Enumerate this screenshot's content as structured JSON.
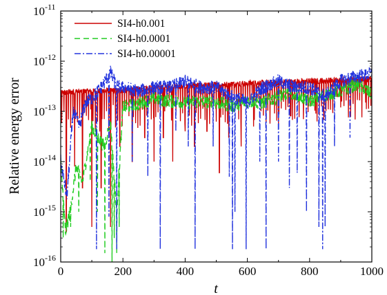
{
  "chart_data": {
    "type": "line",
    "title": "",
    "xlabel": "t",
    "ylabel": "Relative energy error",
    "xlim": [
      0,
      1000
    ],
    "ylim": [
      1e-16,
      1e-11
    ],
    "yscale": "log",
    "xticks": [
      0,
      200,
      400,
      600,
      800,
      1000
    ],
    "xtick_labels": [
      "0",
      "200",
      "400",
      "600",
      "800",
      "1000"
    ],
    "ytick_mantissa": "10",
    "ytick_exponents": [
      "-16",
      "-15",
      "-14",
      "-13",
      "-12",
      "-11"
    ],
    "grid": false,
    "legend_position": "top-left",
    "series": [
      {
        "name": "SI4-h0.001",
        "color": "#cc0000",
        "style": "solid",
        "x": [
          0,
          20,
          50,
          100,
          150,
          200,
          250,
          300,
          400,
          500,
          600,
          700,
          800,
          900,
          1000
        ],
        "y": [
          2.3e-13,
          2.4e-13,
          2.5e-13,
          2.5e-13,
          2.6e-13,
          2.6e-13,
          2.8e-13,
          3e-13,
          3.2e-13,
          3.4e-13,
          3.6e-13,
          3.8e-13,
          4e-13,
          4.2e-13,
          4.4e-13
        ],
        "dips": [
          {
            "x": 18,
            "y": 4e-16
          },
          {
            "x": 45,
            "y": 8e-15
          },
          {
            "x": 70,
            "y": 3e-15
          },
          {
            "x": 100,
            "y": 5e-16
          },
          {
            "x": 130,
            "y": 3e-15
          },
          {
            "x": 160,
            "y": 5e-16
          },
          {
            "x": 190,
            "y": 2e-14
          },
          {
            "x": 230,
            "y": 1e-14
          },
          {
            "x": 270,
            "y": 3e-14
          },
          {
            "x": 300,
            "y": 1e-14
          },
          {
            "x": 330,
            "y": 3e-14
          },
          {
            "x": 360,
            "y": 1e-14
          },
          {
            "x": 400,
            "y": 4e-14
          },
          {
            "x": 430,
            "y": 2e-14
          },
          {
            "x": 470,
            "y": 4e-14
          },
          {
            "x": 510,
            "y": 6e-15
          },
          {
            "x": 540,
            "y": 3e-14
          },
          {
            "x": 580,
            "y": 2e-14
          },
          {
            "x": 620,
            "y": 5e-14
          },
          {
            "x": 660,
            "y": 6e-14
          },
          {
            "x": 700,
            "y": 5e-14
          },
          {
            "x": 740,
            "y": 8e-14
          },
          {
            "x": 780,
            "y": 7e-14
          },
          {
            "x": 820,
            "y": 9e-14
          },
          {
            "x": 860,
            "y": 1.1e-13
          },
          {
            "x": 900,
            "y": 1.2e-13
          },
          {
            "x": 940,
            "y": 1.4e-13
          },
          {
            "x": 980,
            "y": 1.5e-13
          }
        ]
      },
      {
        "name": "SI4-h0.0001",
        "color": "#22cc22",
        "style": "dashed",
        "x": [
          0,
          15,
          30,
          50,
          70,
          100,
          120,
          140,
          160,
          180,
          200,
          250,
          300,
          350,
          400,
          450,
          500,
          550,
          600,
          650,
          700,
          750,
          800,
          850,
          900,
          950,
          1000
        ],
        "y": [
          1e-14,
          4e-16,
          1e-15,
          8e-15,
          4e-15,
          5e-14,
          3e-14,
          2e-14,
          6e-14,
          1e-15,
          1.2e-13,
          1.4e-13,
          1.8e-13,
          1.6e-13,
          1.5e-13,
          1.6e-13,
          1.5e-13,
          1.3e-13,
          1.6e-13,
          1.5e-13,
          2e-13,
          2.2e-13,
          1.6e-13,
          2.1e-13,
          2.5e-13,
          3.5e-13,
          2.2e-13
        ],
        "dips": [
          {
            "x": 8,
            "y": 3e-16
          },
          {
            "x": 32,
            "y": 5e-16
          },
          {
            "x": 58,
            "y": 1e-15
          },
          {
            "x": 95,
            "y": 4e-15
          },
          {
            "x": 118,
            "y": 1e-15
          },
          {
            "x": 142,
            "y": 1.5e-16
          },
          {
            "x": 165,
            "y": 1e-16
          },
          {
            "x": 172,
            "y": 3e-16
          },
          {
            "x": 180,
            "y": 1.5e-16
          },
          {
            "x": 188,
            "y": 5e-16
          }
        ]
      },
      {
        "name": "SI4-h0.00001",
        "color": "#2233dd",
        "style": "dashdot",
        "x": [
          0,
          20,
          40,
          60,
          80,
          100,
          130,
          160,
          180,
          200,
          250,
          300,
          350,
          400,
          450,
          500,
          550,
          600,
          650,
          700,
          750,
          800,
          850,
          900,
          950,
          1000
        ],
        "y": [
          1e-14,
          2e-15,
          1e-13,
          5e-14,
          1.5e-13,
          1.8e-13,
          3e-13,
          6e-13,
          3e-13,
          3e-13,
          2.5e-13,
          3e-13,
          3e-13,
          4e-13,
          3e-13,
          3e-13,
          2e-13,
          1.5e-13,
          3e-13,
          4e-13,
          3e-13,
          3e-13,
          2e-13,
          4e-13,
          5e-13,
          5.5e-13
        ],
        "dips": [
          {
            "x": 115,
            "y": 1.8e-16
          },
          {
            "x": 155,
            "y": 8e-16
          },
          {
            "x": 180,
            "y": 1.8e-16
          },
          {
            "x": 230,
            "y": 1e-14
          },
          {
            "x": 280,
            "y": 5e-15
          },
          {
            "x": 320,
            "y": 1.8e-16
          },
          {
            "x": 370,
            "y": 4e-14
          },
          {
            "x": 410,
            "y": 2e-14
          },
          {
            "x": 432,
            "y": 1.8e-16
          },
          {
            "x": 490,
            "y": 2e-14
          },
          {
            "x": 542,
            "y": 5e-15
          },
          {
            "x": 552,
            "y": 1.8e-16
          },
          {
            "x": 560,
            "y": 1e-15
          },
          {
            "x": 596,
            "y": 1.8e-16
          },
          {
            "x": 640,
            "y": 1e-14
          },
          {
            "x": 660,
            "y": 1.8e-16
          },
          {
            "x": 700,
            "y": 1e-14
          },
          {
            "x": 735,
            "y": 3e-15
          },
          {
            "x": 760,
            "y": 6e-15
          },
          {
            "x": 790,
            "y": 1e-15
          },
          {
            "x": 830,
            "y": 5e-16
          },
          {
            "x": 842,
            "y": 1.8e-16
          },
          {
            "x": 850,
            "y": 5e-16
          },
          {
            "x": 880,
            "y": 2e-14
          },
          {
            "x": 930,
            "y": 3e-14
          }
        ]
      }
    ]
  }
}
